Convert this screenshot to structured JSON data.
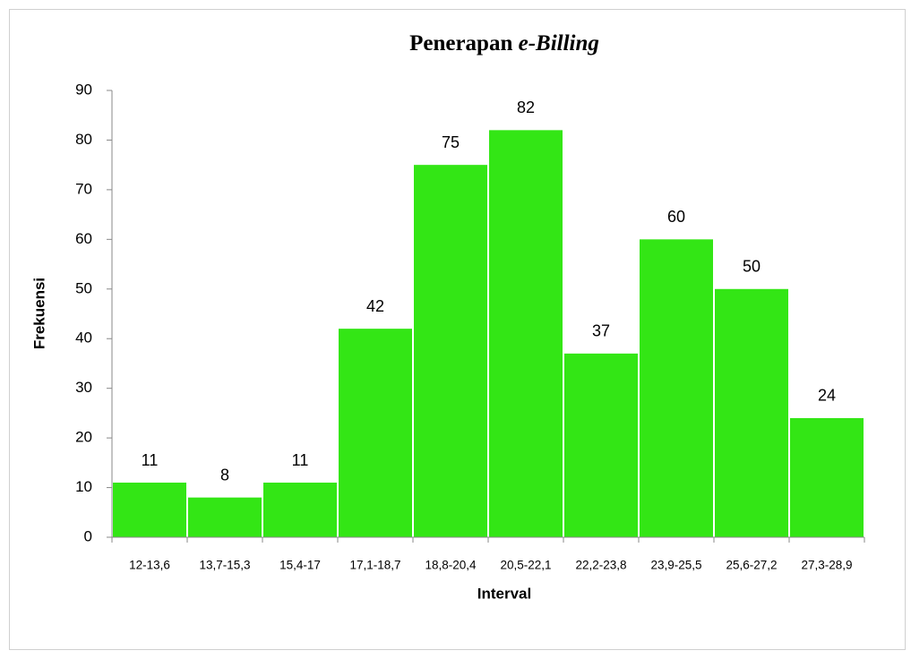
{
  "chart_data": {
    "type": "bar",
    "title": "Penerapan e-Billing",
    "x_label": "Interval",
    "y_label": "Frekuensi",
    "categories": [
      "12-13,6",
      "13,7-15,3",
      "15,4-17",
      "17,1-18,7",
      "18,8-20,4",
      "20,5-22,1",
      "22,2-23,8",
      "23,9-25,5",
      "25,6-27,2",
      "27,3-28,9"
    ],
    "values": [
      11,
      8,
      11,
      42,
      75,
      82,
      37,
      60,
      50,
      24
    ],
    "color": "#33e615",
    "ylim": [
      0,
      90
    ],
    "yticks": [
      0,
      10,
      20,
      30,
      40,
      50,
      60,
      70,
      80,
      90
    ],
    "grid": false
  }
}
